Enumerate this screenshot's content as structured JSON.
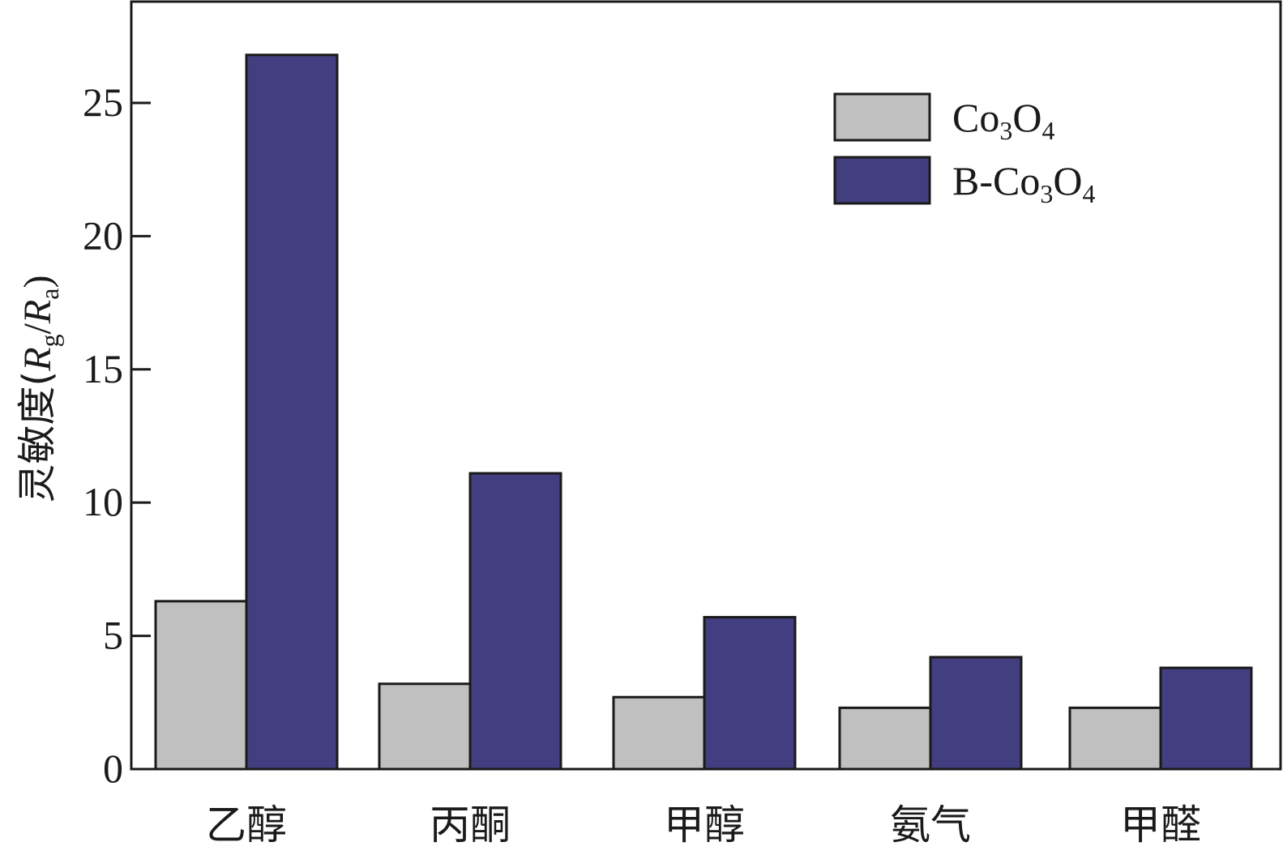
{
  "chart_data": {
    "type": "bar",
    "categories": [
      "乙醇",
      "丙酮",
      "甲醇",
      "氨气",
      "甲醛"
    ],
    "series": [
      {
        "name": "Co3O4",
        "label_parts": [
          "Co",
          "3",
          "O",
          "4"
        ],
        "color": "#c0c0c0",
        "values": [
          6.3,
          3.2,
          2.7,
          2.3,
          2.3
        ]
      },
      {
        "name": "B-Co3O4",
        "label_parts": [
          "B-Co",
          "3",
          "O",
          "4"
        ],
        "color": "#423e7f",
        "values": [
          26.8,
          11.1,
          5.7,
          4.2,
          3.8
        ]
      }
    ],
    "ylabel": {
      "prefix": "灵敏度(",
      "r1": "R",
      "s1": "g",
      "slash": "/",
      "r2": "R",
      "s2": "a",
      "suffix": ")"
    },
    "ylim": [
      0,
      28.8
    ],
    "yticks": [
      0,
      5,
      10,
      15,
      20,
      25
    ],
    "legend_position": "top-right",
    "grid": false
  }
}
